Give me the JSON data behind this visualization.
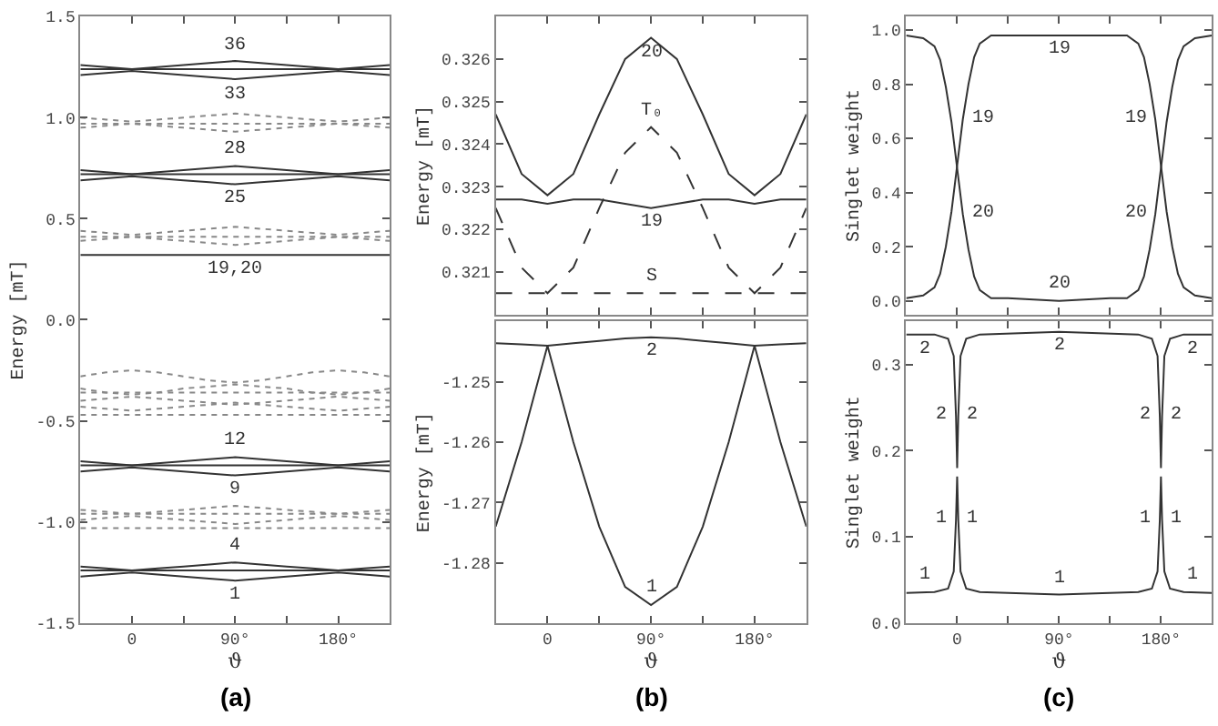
{
  "chart_data": [
    {
      "type": "line",
      "xlabel": "ϑ",
      "ylabel": "Energy [mT]",
      "xlim": [
        -45,
        225
      ],
      "ylim": [
        -1.5,
        1.5
      ],
      "xticks": [
        0,
        {
          "value": 45,
          "label": null
        },
        {
          "value": 90,
          "label": "90°"
        },
        {
          "value": 135,
          "label": null
        },
        {
          "value": 180,
          "label": "180°"
        }
      ],
      "yticks": [
        {
          "value": -1.5,
          "label": "-1.5"
        },
        {
          "value": -1,
          "label": "-1.0"
        },
        -0.5,
        {
          "value": 0,
          "label": "0.0"
        },
        0.5,
        {
          "value": 1,
          "label": "1.0"
        },
        1.5
      ],
      "x": [
        -45,
        -22.5,
        0,
        22.5,
        45,
        67.5,
        90,
        112.5,
        135,
        157.5,
        180,
        202.5,
        225
      ],
      "series": [
        {
          "color": "#333333",
          "line_style": "solid",
          "values": [
            -1.22,
            -1.23,
            -1.24,
            -1.23,
            -1.22,
            -1.21,
            -1.2,
            -1.21,
            -1.22,
            -1.23,
            -1.24,
            -1.23,
            -1.22
          ]
        },
        {
          "color": "#333333",
          "line_style": "solid",
          "values": [
            -1.27,
            -1.26,
            -1.25,
            -1.26,
            -1.27,
            -1.28,
            -1.29,
            -1.28,
            -1.27,
            -1.26,
            -1.25,
            -1.26,
            -1.27
          ]
        },
        {
          "color": "#333333",
          "line_style": "solid",
          "values": [
            -1.24,
            -1.24,
            -1.24,
            -1.24,
            -1.24,
            -1.24,
            -1.24,
            -1.24,
            -1.24,
            -1.24,
            -1.24,
            -1.24,
            -1.24
          ]
        },
        {
          "color": "#888888",
          "line_style": "dotted",
          "values": [
            -0.94,
            -0.95,
            -0.96,
            -0.95,
            -0.94,
            -0.93,
            -0.92,
            -0.93,
            -0.94,
            -0.95,
            -0.96,
            -0.95,
            -0.94
          ]
        },
        {
          "color": "#888888",
          "line_style": "dotted",
          "values": [
            -0.99,
            -0.98,
            -0.97,
            -0.98,
            -0.99,
            -1.0,
            -1.01,
            -1.0,
            -0.99,
            -0.98,
            -0.97,
            -0.98,
            -0.99
          ]
        },
        {
          "color": "#888888",
          "line_style": "dotted",
          "values": [
            -0.96,
            -0.96,
            -0.96,
            -0.96,
            -0.96,
            -0.96,
            -0.96,
            -0.96,
            -0.96,
            -0.96,
            -0.96,
            -0.96,
            -0.96
          ]
        },
        {
          "color": "#888888",
          "line_style": "dotted",
          "values": [
            -1.03,
            -1.03,
            -1.03,
            -1.03,
            -1.03,
            -1.03,
            -1.03,
            -1.03,
            -1.03,
            -1.03,
            -1.03,
            -1.03,
            -1.03
          ]
        },
        {
          "color": "#333333",
          "line_style": "solid",
          "values": [
            -0.7,
            -0.71,
            -0.72,
            -0.71,
            -0.7,
            -0.69,
            -0.68,
            -0.69,
            -0.7,
            -0.71,
            -0.72,
            -0.71,
            -0.7
          ]
        },
        {
          "color": "#333333",
          "line_style": "solid",
          "values": [
            -0.75,
            -0.74,
            -0.73,
            -0.74,
            -0.75,
            -0.76,
            -0.77,
            -0.76,
            -0.75,
            -0.74,
            -0.73,
            -0.74,
            -0.75
          ]
        },
        {
          "color": "#333333",
          "line_style": "solid",
          "values": [
            -0.72,
            -0.72,
            -0.72,
            -0.72,
            -0.72,
            -0.72,
            -0.72,
            -0.72,
            -0.72,
            -0.72,
            -0.72,
            -0.72,
            -0.72
          ]
        },
        {
          "color": "#888888",
          "line_style": "dotted",
          "values": [
            -0.28,
            -0.26,
            -0.25,
            -0.26,
            -0.28,
            -0.3,
            -0.31,
            -0.3,
            -0.28,
            -0.26,
            -0.25,
            -0.26,
            -0.28
          ]
        },
        {
          "color": "#888888",
          "line_style": "dotted",
          "values": [
            -0.34,
            -0.36,
            -0.37,
            -0.36,
            -0.34,
            -0.33,
            -0.32,
            -0.33,
            -0.34,
            -0.36,
            -0.37,
            -0.36,
            -0.34
          ]
        },
        {
          "color": "#888888",
          "line_style": "dotted",
          "values": [
            -0.4,
            -0.39,
            -0.38,
            -0.39,
            -0.4,
            -0.41,
            -0.42,
            -0.41,
            -0.4,
            -0.39,
            -0.38,
            -0.39,
            -0.4
          ]
        },
        {
          "color": "#888888",
          "line_style": "dotted",
          "values": [
            -0.43,
            -0.44,
            -0.45,
            -0.44,
            -0.43,
            -0.42,
            -0.41,
            -0.42,
            -0.43,
            -0.44,
            -0.45,
            -0.44,
            -0.43
          ]
        },
        {
          "color": "#888888",
          "line_style": "dotted",
          "values": [
            -0.36,
            -0.36,
            -0.36,
            -0.36,
            -0.36,
            -0.36,
            -0.36,
            -0.36,
            -0.36,
            -0.36,
            -0.36,
            -0.36,
            -0.36
          ]
        },
        {
          "color": "#888888",
          "line_style": "dotted",
          "values": [
            -0.47,
            -0.47,
            -0.47,
            -0.47,
            -0.47,
            -0.47,
            -0.47,
            -0.47,
            -0.47,
            -0.47,
            -0.47,
            -0.47,
            -0.47
          ]
        },
        {
          "color": "#333333",
          "line_style": "solid",
          "values": [
            0.32,
            0.32,
            0.32,
            0.32,
            0.32,
            0.32,
            0.32,
            0.32,
            0.32,
            0.32,
            0.32,
            0.32,
            0.32
          ]
        },
        {
          "color": "#888888",
          "line_style": "dotted",
          "values": [
            0.44,
            0.43,
            0.42,
            0.43,
            0.44,
            0.45,
            0.46,
            0.45,
            0.44,
            0.43,
            0.42,
            0.43,
            0.44
          ]
        },
        {
          "color": "#888888",
          "line_style": "dotted",
          "values": [
            0.39,
            0.4,
            0.41,
            0.4,
            0.39,
            0.38,
            0.37,
            0.38,
            0.39,
            0.4,
            0.41,
            0.4,
            0.39
          ]
        },
        {
          "color": "#888888",
          "line_style": "dotted",
          "values": [
            0.41,
            0.41,
            0.41,
            0.41,
            0.41,
            0.41,
            0.41,
            0.41,
            0.41,
            0.41,
            0.41,
            0.41,
            0.41
          ]
        },
        {
          "color": "#333333",
          "line_style": "solid",
          "values": [
            0.74,
            0.73,
            0.72,
            0.73,
            0.74,
            0.75,
            0.76,
            0.75,
            0.74,
            0.73,
            0.72,
            0.73,
            0.74
          ]
        },
        {
          "color": "#333333",
          "line_style": "solid",
          "values": [
            0.69,
            0.7,
            0.71,
            0.7,
            0.69,
            0.68,
            0.67,
            0.68,
            0.69,
            0.7,
            0.71,
            0.7,
            0.69
          ]
        },
        {
          "color": "#333333",
          "line_style": "solid",
          "values": [
            0.72,
            0.72,
            0.72,
            0.72,
            0.72,
            0.72,
            0.72,
            0.72,
            0.72,
            0.72,
            0.72,
            0.72,
            0.72
          ]
        },
        {
          "color": "#888888",
          "line_style": "dotted",
          "values": [
            1.0,
            0.99,
            0.98,
            0.99,
            1.0,
            1.01,
            1.02,
            1.01,
            1.0,
            0.99,
            0.98,
            0.99,
            1.0
          ]
        },
        {
          "color": "#888888",
          "line_style": "dotted",
          "values": [
            0.95,
            0.96,
            0.97,
            0.96,
            0.95,
            0.94,
            0.93,
            0.94,
            0.95,
            0.96,
            0.97,
            0.96,
            0.95
          ]
        },
        {
          "color": "#888888",
          "line_style": "dotted",
          "values": [
            0.97,
            0.97,
            0.97,
            0.97,
            0.97,
            0.97,
            0.97,
            0.97,
            0.97,
            0.97,
            0.97,
            0.97,
            0.97
          ]
        },
        {
          "color": "#333333",
          "line_style": "solid",
          "values": [
            1.26,
            1.25,
            1.24,
            1.25,
            1.26,
            1.27,
            1.28,
            1.27,
            1.26,
            1.25,
            1.24,
            1.25,
            1.26
          ]
        },
        {
          "color": "#333333",
          "line_style": "solid",
          "values": [
            1.21,
            1.22,
            1.23,
            1.22,
            1.21,
            1.2,
            1.19,
            1.2,
            1.21,
            1.22,
            1.23,
            1.22,
            1.21
          ]
        },
        {
          "color": "#333333",
          "line_style": "solid",
          "values": [
            1.24,
            1.24,
            1.24,
            1.24,
            1.24,
            1.24,
            1.24,
            1.24,
            1.24,
            1.24,
            1.24,
            1.24,
            1.24
          ]
        }
      ],
      "annotations": [
        {
          "text": "36",
          "x": 90,
          "y": 1.28
        },
        {
          "text": "33",
          "x": 90,
          "y": 1.19
        },
        {
          "text": "28",
          "x": 90,
          "y": 0.76
        },
        {
          "text": "25",
          "x": 90,
          "y": 0.67
        },
        {
          "text": "19,20",
          "x": 90,
          "y": 0.32
        },
        {
          "text": "12",
          "x": 90,
          "y": -0.68
        },
        {
          "text": "9",
          "x": 90,
          "y": -0.77
        },
        {
          "text": "4",
          "x": 90,
          "y": -1.2
        },
        {
          "text": "1",
          "x": 90,
          "y": -1.29
        },
        "(a)"
      ]
    },
    {
      "type": "line",
      "ylabel": "Energy [mT]",
      "tick_labels": "y",
      "xlim": [
        -45,
        225
      ],
      "ylim": [
        0.32,
        0.327
      ],
      "xticks": [
        {
          "value": 0,
          "label": null
        },
        {
          "value": 45,
          "label": null
        },
        {
          "value": 90,
          "label": null
        },
        {
          "value": 135,
          "label": null
        },
        {
          "value": 180,
          "label": null
        }
      ],
      "yticks": [
        0.321,
        0.322,
        0.323,
        0.324,
        0.325,
        0.326
      ],
      "x": [
        -45,
        -22.5,
        0,
        22.5,
        45,
        67.5,
        90,
        112.5,
        135,
        157.5,
        180,
        202.5,
        225
      ],
      "series": [
        {
          "color": "#333333",
          "line_style": "solid",
          "values": [
            0.3247,
            0.3233,
            0.3228,
            0.3233,
            0.3247,
            0.326,
            0.3265,
            0.326,
            0.3247,
            0.3233,
            0.3228,
            0.3233,
            0.3247
          ]
        },
        {
          "color": "#333333",
          "line_style": "dashed",
          "values": [
            0.3225,
            0.3211,
            0.3205,
            0.3211,
            0.3225,
            0.3238,
            0.3244,
            0.3238,
            0.3225,
            0.3211,
            0.3205,
            0.3211,
            0.3225
          ]
        },
        {
          "color": "#333333",
          "line_style": "solid",
          "values": [
            0.3227,
            0.3227,
            0.3226,
            0.3227,
            0.3227,
            0.3226,
            0.3225,
            0.3226,
            0.3227,
            0.3227,
            0.3226,
            0.3227,
            0.3227
          ]
        },
        {
          "color": "#333333",
          "line_style": "dashed",
          "values": [
            0.3205,
            0.3205,
            0.3205,
            0.3205,
            0.3205,
            0.3205,
            0.3205,
            0.3205,
            0.3205,
            0.3205,
            0.3205,
            0.3205,
            0.3205
          ]
        }
      ],
      "annotations": [
        {
          "text": "20",
          "x": 90,
          "y": 0.3265
        },
        {
          "text": "T₀",
          "x": 90,
          "y": 0.3244
        },
        {
          "text": "19",
          "x": 90,
          "y": 0.3225
        },
        {
          "text": "S",
          "x": 90,
          "y": 0.3205
        }
      ]
    },
    {
      "type": "line",
      "xlabel": "ϑ",
      "ylabel": "Energy [mT]",
      "xlim": [
        -45,
        225
      ],
      "ylim": [
        -1.29,
        -1.24
      ],
      "xticks": [
        0,
        {
          "value": 45,
          "label": null
        },
        {
          "value": 90,
          "label": "90°"
        },
        {
          "value": 135,
          "label": null
        },
        {
          "value": 180,
          "label": "180°"
        }
      ],
      "yticks": [
        -1.28,
        -1.27,
        -1.26,
        -1.25
      ],
      "x": [
        -45,
        -22.5,
        0,
        22.5,
        45,
        67.5,
        90,
        112.5,
        135,
        157.5,
        180,
        202.5,
        225
      ],
      "series": [
        {
          "color": "#333333",
          "line_style": "solid",
          "values": [
            -1.2436,
            -1.2438,
            -1.244,
            -1.2436,
            -1.2432,
            -1.2428,
            -1.2426,
            -1.2428,
            -1.2432,
            -1.2436,
            -1.244,
            -1.2438,
            -1.2436
          ]
        },
        {
          "color": "#333333",
          "line_style": "solid",
          "values": [
            -1.274,
            -1.26,
            -1.244,
            -1.26,
            -1.274,
            -1.284,
            -1.287,
            -1.284,
            -1.274,
            -1.26,
            -1.244,
            -1.26,
            -1.274
          ]
        }
      ],
      "annotations": [
        {
          "text": "2",
          "x": 90,
          "y": -1.2426
        },
        {
          "text": "1",
          "x": 90,
          "y": -1.287
        },
        "(b)"
      ]
    },
    {
      "type": "line",
      "ylabel": "Singlet weight",
      "tick_labels": "y",
      "xlim": [
        -45,
        225
      ],
      "ylim": [
        -0.05,
        1.05
      ],
      "xticks": [
        {
          "value": 0,
          "label": null
        },
        {
          "value": 45,
          "label": null
        },
        {
          "value": 90,
          "label": null
        },
        {
          "value": 135,
          "label": null
        },
        {
          "value": 180,
          "label": null
        }
      ],
      "yticks": [
        {
          "value": 0,
          "label": "0.0"
        },
        0.2,
        0.4,
        0.6,
        0.8,
        {
          "value": 1,
          "label": "1.0"
        }
      ],
      "x": [
        -45,
        -30,
        -20,
        -15,
        -10,
        -5,
        0,
        5,
        10,
        15,
        20,
        30,
        45,
        90,
        135,
        150,
        160,
        165,
        170,
        175,
        180,
        185,
        190,
        195,
        200,
        210,
        225
      ],
      "series": [
        {
          "color": "#333333",
          "line_style": "solid",
          "values": [
            0.01,
            0.02,
            0.05,
            0.1,
            0.2,
            0.33,
            0.5,
            0.67,
            0.8,
            0.9,
            0.95,
            0.98,
            0.98,
            0.98,
            0.98,
            0.98,
            0.95,
            0.9,
            0.8,
            0.67,
            0.5,
            0.33,
            0.2,
            0.1,
            0.05,
            0.02,
            0.01
          ]
        },
        {
          "color": "#333333",
          "line_style": "solid",
          "values": [
            0.98,
            0.97,
            0.94,
            0.89,
            0.79,
            0.66,
            0.49,
            0.32,
            0.19,
            0.09,
            0.04,
            0.01,
            0.01,
            0.0,
            0.01,
            0.01,
            0.04,
            0.09,
            0.19,
            0.32,
            0.49,
            0.66,
            0.79,
            0.89,
            0.94,
            0.97,
            0.98
          ]
        }
      ],
      "annotations": [
        {
          "text": "19",
          "x": 90,
          "y": 0.98
        },
        {
          "text": "20",
          "x": 90,
          "y": 0.0
        },
        {
          "text": "19",
          "x": 5,
          "y": 0.67
        },
        {
          "text": "20",
          "x": 5,
          "y": 0.32
        },
        {
          "text": "19",
          "x": 175,
          "y": 0.67
        },
        {
          "text": "20",
          "x": 175,
          "y": 0.32
        }
      ]
    },
    {
      "type": "line",
      "xlabel": "ϑ",
      "ylabel": "Singlet weight",
      "xlim": [
        -45,
        225
      ],
      "ylim": [
        0,
        0.35
      ],
      "xticks": [
        0,
        {
          "value": 45,
          "label": null
        },
        {
          "value": 90,
          "label": "90°"
        },
        {
          "value": 135,
          "label": null
        },
        {
          "value": 180,
          "label": "180°"
        }
      ],
      "yticks": [
        {
          "value": 0,
          "label": "0.0"
        },
        0.1,
        0.2,
        0.3
      ],
      "x": [
        -45,
        -20,
        -8,
        -3,
        -1,
        0,
        1,
        3,
        8,
        20,
        90,
        160,
        172,
        177,
        179,
        180,
        181,
        183,
        188,
        200,
        225
      ],
      "series": [
        {
          "color": "#333333",
          "line_style": "solid",
          "values": [
            0.035,
            0.036,
            0.04,
            0.06,
            0.12,
            0.17,
            0.12,
            0.06,
            0.04,
            0.036,
            0.033,
            0.036,
            0.04,
            0.06,
            0.12,
            0.17,
            0.12,
            0.06,
            0.04,
            0.036,
            0.035
          ]
        },
        {
          "color": "#333333",
          "line_style": "solid",
          "values": [
            0.335,
            0.335,
            0.33,
            0.31,
            0.24,
            0.18,
            0.24,
            0.31,
            0.33,
            0.335,
            0.338,
            0.335,
            0.33,
            0.31,
            0.24,
            0.18,
            0.24,
            0.31,
            0.33,
            0.335,
            0.335
          ]
        }
      ],
      "annotations": [
        {
          "text": "2",
          "x": -28,
          "y": 0.335
        },
        {
          "text": "2",
          "x": 90,
          "y": 0.338
        },
        {
          "text": "2",
          "x": 208,
          "y": 0.335
        },
        {
          "text": "2",
          "x": -1,
          "y": 0.24
        },
        {
          "text": "2",
          "x": 1,
          "y": 0.24
        },
        {
          "text": "2",
          "x": 179,
          "y": 0.24
        },
        {
          "text": "2",
          "x": 181,
          "y": 0.24
        },
        {
          "text": "1",
          "x": -1,
          "y": 0.12
        },
        {
          "text": "1",
          "x": 1,
          "y": 0.12
        },
        {
          "text": "1",
          "x": 179,
          "y": 0.12
        },
        {
          "text": "1",
          "x": 181,
          "y": 0.12
        },
        {
          "text": "1",
          "x": -28,
          "y": 0.036
        },
        {
          "text": "1",
          "x": 90,
          "y": 0.033
        },
        {
          "text": "1",
          "x": 208,
          "y": 0.036
        },
        "(c)"
      ]
    }
  ]
}
